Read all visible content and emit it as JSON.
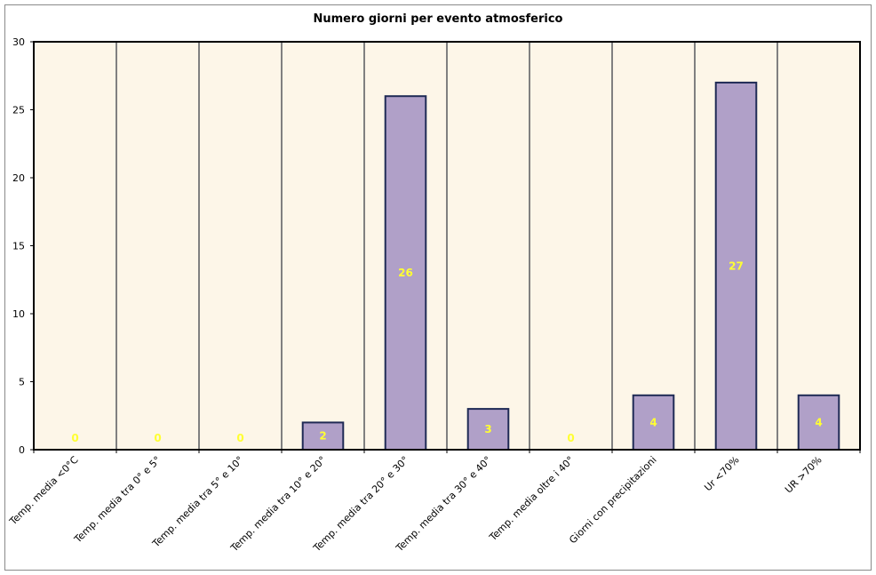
{
  "chart_data": {
    "type": "bar",
    "title": "Numero giorni per evento atmosferico",
    "xlabel": "",
    "ylabel": "",
    "ylim": [
      0,
      30
    ],
    "yticks": [
      0,
      5,
      10,
      15,
      20,
      25,
      30
    ],
    "categories": [
      "Temp. media <0°C",
      "Temp. media tra 0° e 5°",
      "Temp. media tra 5° e 10°",
      "Temp. media tra 10° e 20°",
      "Temp. media tra 20° e 30°",
      "Temp. media tra 30° e 40°",
      "Temp. media oltre i 40°",
      "Giorni con precipitazioni",
      "Ur <70%",
      "UR >70%"
    ],
    "values": [
      0,
      0,
      0,
      2,
      26,
      3,
      0,
      4,
      27,
      4
    ],
    "data_labels": [
      "0",
      "0",
      "0",
      "2",
      "26",
      "3",
      "0",
      "4",
      "27",
      "4"
    ],
    "grid": true,
    "legend": "none",
    "colors": {
      "bar_fill": "#b0a0c8",
      "bar_stroke": "#1f2a55",
      "plot_bg": "#fdf6e8",
      "grid": "#808080",
      "data_label": "#ffff33"
    }
  }
}
